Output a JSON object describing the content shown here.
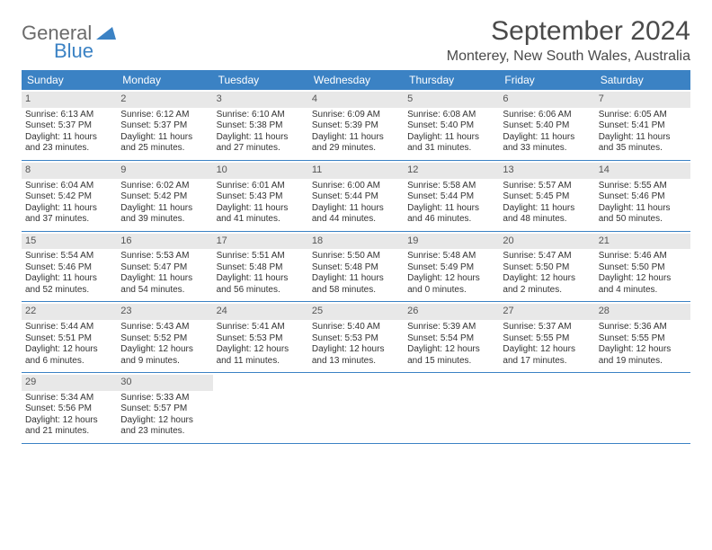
{
  "brand": {
    "part1": "General",
    "part2": "Blue"
  },
  "title": "September 2024",
  "location": "Monterey, New South Wales, Australia",
  "colors": {
    "header_bg": "#3b82c4",
    "header_text": "#ffffff",
    "daynum_bg": "#e8e8e8",
    "text": "#333333"
  },
  "dayNames": [
    "Sunday",
    "Monday",
    "Tuesday",
    "Wednesday",
    "Thursday",
    "Friday",
    "Saturday"
  ],
  "weeks": [
    [
      {
        "n": "1",
        "sr": "Sunrise: 6:13 AM",
        "ss": "Sunset: 5:37 PM",
        "d1": "Daylight: 11 hours",
        "d2": "and 23 minutes."
      },
      {
        "n": "2",
        "sr": "Sunrise: 6:12 AM",
        "ss": "Sunset: 5:37 PM",
        "d1": "Daylight: 11 hours",
        "d2": "and 25 minutes."
      },
      {
        "n": "3",
        "sr": "Sunrise: 6:10 AM",
        "ss": "Sunset: 5:38 PM",
        "d1": "Daylight: 11 hours",
        "d2": "and 27 minutes."
      },
      {
        "n": "4",
        "sr": "Sunrise: 6:09 AM",
        "ss": "Sunset: 5:39 PM",
        "d1": "Daylight: 11 hours",
        "d2": "and 29 minutes."
      },
      {
        "n": "5",
        "sr": "Sunrise: 6:08 AM",
        "ss": "Sunset: 5:40 PM",
        "d1": "Daylight: 11 hours",
        "d2": "and 31 minutes."
      },
      {
        "n": "6",
        "sr": "Sunrise: 6:06 AM",
        "ss": "Sunset: 5:40 PM",
        "d1": "Daylight: 11 hours",
        "d2": "and 33 minutes."
      },
      {
        "n": "7",
        "sr": "Sunrise: 6:05 AM",
        "ss": "Sunset: 5:41 PM",
        "d1": "Daylight: 11 hours",
        "d2": "and 35 minutes."
      }
    ],
    [
      {
        "n": "8",
        "sr": "Sunrise: 6:04 AM",
        "ss": "Sunset: 5:42 PM",
        "d1": "Daylight: 11 hours",
        "d2": "and 37 minutes."
      },
      {
        "n": "9",
        "sr": "Sunrise: 6:02 AM",
        "ss": "Sunset: 5:42 PM",
        "d1": "Daylight: 11 hours",
        "d2": "and 39 minutes."
      },
      {
        "n": "10",
        "sr": "Sunrise: 6:01 AM",
        "ss": "Sunset: 5:43 PM",
        "d1": "Daylight: 11 hours",
        "d2": "and 41 minutes."
      },
      {
        "n": "11",
        "sr": "Sunrise: 6:00 AM",
        "ss": "Sunset: 5:44 PM",
        "d1": "Daylight: 11 hours",
        "d2": "and 44 minutes."
      },
      {
        "n": "12",
        "sr": "Sunrise: 5:58 AM",
        "ss": "Sunset: 5:44 PM",
        "d1": "Daylight: 11 hours",
        "d2": "and 46 minutes."
      },
      {
        "n": "13",
        "sr": "Sunrise: 5:57 AM",
        "ss": "Sunset: 5:45 PM",
        "d1": "Daylight: 11 hours",
        "d2": "and 48 minutes."
      },
      {
        "n": "14",
        "sr": "Sunrise: 5:55 AM",
        "ss": "Sunset: 5:46 PM",
        "d1": "Daylight: 11 hours",
        "d2": "and 50 minutes."
      }
    ],
    [
      {
        "n": "15",
        "sr": "Sunrise: 5:54 AM",
        "ss": "Sunset: 5:46 PM",
        "d1": "Daylight: 11 hours",
        "d2": "and 52 minutes."
      },
      {
        "n": "16",
        "sr": "Sunrise: 5:53 AM",
        "ss": "Sunset: 5:47 PM",
        "d1": "Daylight: 11 hours",
        "d2": "and 54 minutes."
      },
      {
        "n": "17",
        "sr": "Sunrise: 5:51 AM",
        "ss": "Sunset: 5:48 PM",
        "d1": "Daylight: 11 hours",
        "d2": "and 56 minutes."
      },
      {
        "n": "18",
        "sr": "Sunrise: 5:50 AM",
        "ss": "Sunset: 5:48 PM",
        "d1": "Daylight: 11 hours",
        "d2": "and 58 minutes."
      },
      {
        "n": "19",
        "sr": "Sunrise: 5:48 AM",
        "ss": "Sunset: 5:49 PM",
        "d1": "Daylight: 12 hours",
        "d2": "and 0 minutes."
      },
      {
        "n": "20",
        "sr": "Sunrise: 5:47 AM",
        "ss": "Sunset: 5:50 PM",
        "d1": "Daylight: 12 hours",
        "d2": "and 2 minutes."
      },
      {
        "n": "21",
        "sr": "Sunrise: 5:46 AM",
        "ss": "Sunset: 5:50 PM",
        "d1": "Daylight: 12 hours",
        "d2": "and 4 minutes."
      }
    ],
    [
      {
        "n": "22",
        "sr": "Sunrise: 5:44 AM",
        "ss": "Sunset: 5:51 PM",
        "d1": "Daylight: 12 hours",
        "d2": "and 6 minutes."
      },
      {
        "n": "23",
        "sr": "Sunrise: 5:43 AM",
        "ss": "Sunset: 5:52 PM",
        "d1": "Daylight: 12 hours",
        "d2": "and 9 minutes."
      },
      {
        "n": "24",
        "sr": "Sunrise: 5:41 AM",
        "ss": "Sunset: 5:53 PM",
        "d1": "Daylight: 12 hours",
        "d2": "and 11 minutes."
      },
      {
        "n": "25",
        "sr": "Sunrise: 5:40 AM",
        "ss": "Sunset: 5:53 PM",
        "d1": "Daylight: 12 hours",
        "d2": "and 13 minutes."
      },
      {
        "n": "26",
        "sr": "Sunrise: 5:39 AM",
        "ss": "Sunset: 5:54 PM",
        "d1": "Daylight: 12 hours",
        "d2": "and 15 minutes."
      },
      {
        "n": "27",
        "sr": "Sunrise: 5:37 AM",
        "ss": "Sunset: 5:55 PM",
        "d1": "Daylight: 12 hours",
        "d2": "and 17 minutes."
      },
      {
        "n": "28",
        "sr": "Sunrise: 5:36 AM",
        "ss": "Sunset: 5:55 PM",
        "d1": "Daylight: 12 hours",
        "d2": "and 19 minutes."
      }
    ],
    [
      {
        "n": "29",
        "sr": "Sunrise: 5:34 AM",
        "ss": "Sunset: 5:56 PM",
        "d1": "Daylight: 12 hours",
        "d2": "and 21 minutes."
      },
      {
        "n": "30",
        "sr": "Sunrise: 5:33 AM",
        "ss": "Sunset: 5:57 PM",
        "d1": "Daylight: 12 hours",
        "d2": "and 23 minutes."
      },
      null,
      null,
      null,
      null,
      null
    ]
  ]
}
